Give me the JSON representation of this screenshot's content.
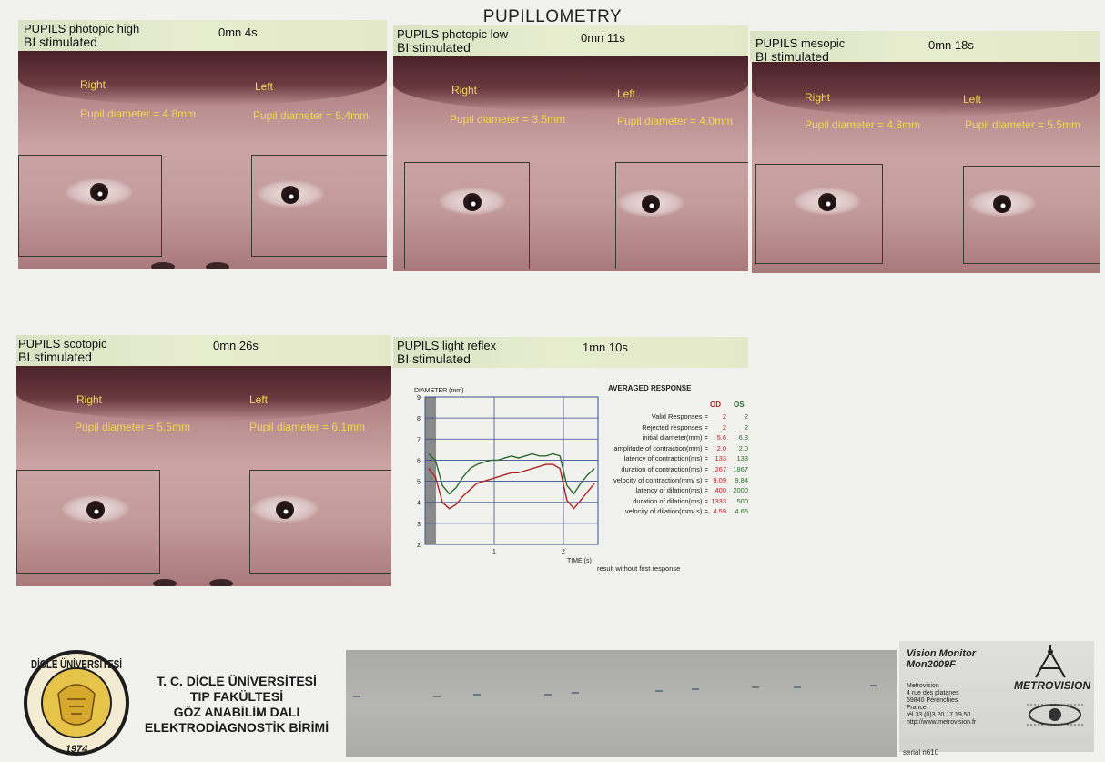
{
  "page_title": "PUPILLOMETRY",
  "panels": [
    {
      "line1": "PUPILS photopic high",
      "line2": "BI stimulated",
      "time": "0mn 4s",
      "right": "Right",
      "left": "Left",
      "right_diam": "Pupil diameter = 4.8mm",
      "left_diam": "Pupil diameter = 5.4mm"
    },
    {
      "line1": "PUPILS photopic low",
      "line2": "BI stimulated",
      "time": "0mn 11s",
      "right": "Right",
      "left": "Left",
      "right_diam": "Pupil diameter = 3.5mm",
      "left_diam": "Pupil diameter = 4.0mm"
    },
    {
      "line1": "PUPILS mesopic",
      "line2": "BI stimulated",
      "time": "0mn 18s",
      "right": "Right",
      "left": "Left",
      "right_diam": "Pupil diameter = 4.8mm",
      "left_diam": "Pupil diameter = 5.5mm"
    },
    {
      "line1": "PUPILS scotopic",
      "line2": "BI stimulated",
      "time": "0mn 26s",
      "right": "Right",
      "left": "Left",
      "right_diam": "Pupil diameter = 5.5mm",
      "left_diam": "Pupil diameter = 6.1mm"
    }
  ],
  "reflex_panel": {
    "line1": "PUPILS light reflex",
    "line2": "BI stimulated",
    "time": "1mn 10s"
  },
  "chart_data": {
    "type": "line",
    "ylabel": "DIAMETER (mm)",
    "xlabel": "TIME (s)",
    "ylim": [
      2,
      9
    ],
    "xlim": [
      0,
      2.5
    ],
    "yticks": [
      "2",
      "3",
      "4",
      "5",
      "6",
      "7",
      "8",
      "9"
    ],
    "xticks": [
      "1",
      "2"
    ],
    "grid": true,
    "colors": {
      "od": "#b22424",
      "os": "#2d6a2d",
      "grid": "#3a4f8c"
    },
    "series": [
      {
        "key": "os",
        "x": [
          0.05,
          0.15,
          0.25,
          0.35,
          0.45,
          0.55,
          0.65,
          0.75,
          0.85,
          0.95,
          1.05,
          1.15,
          1.25,
          1.35,
          1.45,
          1.55,
          1.65,
          1.75,
          1.85,
          1.95,
          2.05,
          2.15,
          2.25,
          2.35,
          2.45
        ],
        "y": [
          6.3,
          6.0,
          4.8,
          4.4,
          4.7,
          5.2,
          5.6,
          5.8,
          5.9,
          6.0,
          6.0,
          6.1,
          6.2,
          6.1,
          6.2,
          6.3,
          6.2,
          6.2,
          6.3,
          6.2,
          4.8,
          4.4,
          4.9,
          5.3,
          5.6
        ]
      },
      {
        "key": "od",
        "x": [
          0.05,
          0.15,
          0.25,
          0.35,
          0.45,
          0.55,
          0.65,
          0.75,
          0.85,
          0.95,
          1.05,
          1.15,
          1.25,
          1.35,
          1.45,
          1.55,
          1.65,
          1.75,
          1.85,
          1.95,
          2.05,
          2.15,
          2.25,
          2.35,
          2.45
        ],
        "y": [
          5.6,
          5.2,
          4.0,
          3.7,
          3.9,
          4.3,
          4.6,
          4.9,
          5.0,
          5.1,
          5.2,
          5.3,
          5.4,
          5.4,
          5.5,
          5.6,
          5.7,
          5.8,
          5.8,
          5.6,
          4.1,
          3.7,
          4.1,
          4.5,
          4.9
        ]
      }
    ]
  },
  "table": {
    "title": "AVERAGED RESPONSE",
    "col_od": "OD",
    "col_os": "OS",
    "rows": [
      {
        "label": "Valid Responses =",
        "od": "2",
        "os": "2"
      },
      {
        "label": "Rejected responses =",
        "od": "2",
        "os": "2"
      },
      {
        "label": "initial diameter(mm) =",
        "od": "5.6",
        "os": "6.3"
      },
      {
        "label": "amplitude of contraction(mm) =",
        "od": "2.0",
        "os": "2.0"
      },
      {
        "label": "latency of contraction(ms) =",
        "od": "133",
        "os": "133"
      },
      {
        "label": "duration of contraction(ms) =",
        "od": "267",
        "os": "1867"
      },
      {
        "label": "velocity of contraction(mm/ s) =",
        "od": "9.09",
        "os": "9.84"
      },
      {
        "label": "latency of dilation(ms) =",
        "od": "400",
        "os": "2000"
      },
      {
        "label": "duration of dilation(ms) =",
        "od": "1333",
        "os": "500"
      },
      {
        "label": "velocity of dilation(mm/ s) =",
        "od": "4.59",
        "os": "4.65"
      }
    ],
    "note": "result without first response"
  },
  "institution": {
    "line1": "T. C. DİCLE ÜNİVERSİTESİ",
    "line2": "TIP FAKÜLTESİ",
    "line3": "GÖZ ANABİLİM DALI",
    "line4": "ELEKTRODİAGNOSTİK BİRİMİ",
    "seal_text": "DİCLE ÜNİVERSİTESİ",
    "seal_year": "1974"
  },
  "device": {
    "name": "Vision Monitor",
    "model": "Mon2009F",
    "company": "Metrovision",
    "address1": "4 rue des platanes",
    "address2": "59840 Pérenchies",
    "country": "France",
    "phone": "tél 33 (0)3 20 17 19 50",
    "url": "http://www.metrovision.fr",
    "logo": "METROVISION",
    "serial": "serial n610"
  }
}
